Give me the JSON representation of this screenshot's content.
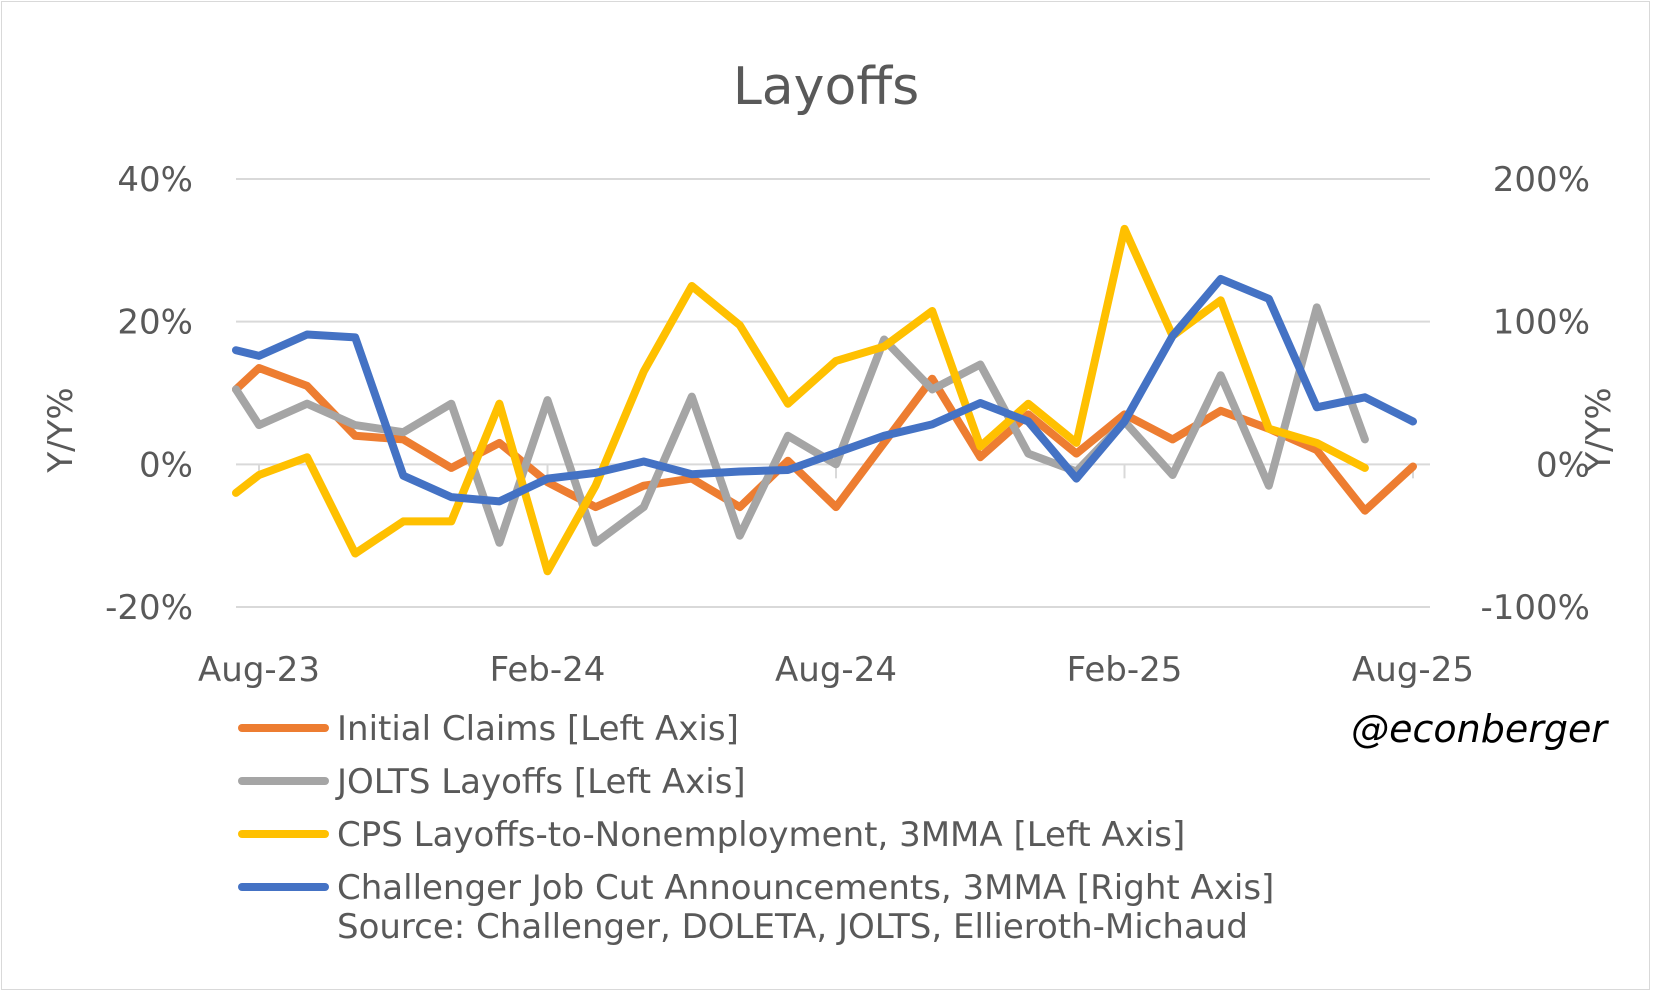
{
  "chart_data": {
    "type": "line",
    "title": "Layoffs",
    "ylabel_left": "Y/Y%",
    "ylabel_right": "Y/Y%",
    "x": [
      "Aug-23",
      "Sep-23",
      "Oct-23",
      "Nov-23",
      "Dec-23",
      "Jan-24",
      "Feb-24",
      "Mar-24",
      "Apr-24",
      "May-24",
      "Jun-24",
      "Jul-24",
      "Aug-24",
      "Sep-24",
      "Oct-24",
      "Nov-24",
      "Dec-24",
      "Jan-25",
      "Feb-25",
      "Mar-25",
      "Apr-25",
      "May-25",
      "Jun-25",
      "Jul-25",
      "Aug-25"
    ],
    "x_tick_labels": [
      "Aug-23",
      "Feb-24",
      "Aug-24",
      "Feb-25",
      "Aug-25"
    ],
    "x_tick_indices": [
      0,
      6,
      12,
      18,
      24
    ],
    "ylim_left": [
      -20,
      40
    ],
    "ylim_right": [
      -100,
      200
    ],
    "y_ticks_left": [
      "-20%",
      "0%",
      "20%",
      "40%"
    ],
    "y_ticks_left_values": [
      -20,
      0,
      20,
      40
    ],
    "y_ticks_right": [
      "-100%",
      "0%",
      "100%",
      "200%"
    ],
    "y_ticks_right_values": [
      -100,
      0,
      100,
      200
    ],
    "gridlines": true,
    "legend_position": "bottom-left",
    "series": [
      {
        "name": "Initial Claims [Left Axis]",
        "axis": "left",
        "color": "#ED7D31",
        "values": [
          13.5,
          11,
          4,
          3.5,
          -0.5,
          3,
          -2.5,
          -6,
          -3,
          -2,
          -6,
          0.5,
          -6,
          3,
          12,
          1,
          7,
          1.5,
          7,
          3.5,
          7.5,
          5,
          2,
          -6.5,
          -0.3
        ]
      },
      {
        "name": "JOLTS Layoffs [Left Axis]",
        "axis": "left",
        "color": "#A5A5A5",
        "values": [
          5.5,
          8.5,
          5.5,
          4.5,
          8.5,
          -11,
          9,
          -11,
          -6,
          9.5,
          -10,
          4,
          0,
          17.5,
          10.5,
          14,
          1.5,
          -1,
          6,
          -1.5,
          12.5,
          -3,
          22,
          3.5,
          null
        ]
      },
      {
        "name": "CPS Layoffs-to-Nonemployment, 3MMA [Left Axis]",
        "axis": "left",
        "color": "#FFC000",
        "values": [
          -1.5,
          1,
          -12.5,
          -8,
          -8,
          8.5,
          -15,
          -3,
          13,
          25,
          19.5,
          8.5,
          14.5,
          16.5,
          21.5,
          2.5,
          8.5,
          3,
          33,
          18,
          23,
          5,
          3,
          -0.5,
          null
        ]
      },
      {
        "name": "Challenger Job Cut Announcements, 3MMA [Right Axis]",
        "axis": "right",
        "color": "#4472C4",
        "values": [
          76,
          91,
          89,
          -8,
          -23,
          -26,
          -10,
          -6,
          2,
          -7,
          -5,
          -4,
          8,
          20,
          28,
          43,
          30,
          -10,
          30,
          90,
          130,
          116,
          40,
          47,
          30
        ]
      }
    ],
    "lead_in_values": {
      "Initial Claims [Left Axis]": 10.5,
      "JOLTS Layoffs [Left Axis]": 10.5,
      "CPS Layoffs-to-Nonemployment, 3MMA [Left Axis]": -4,
      "Challenger Job Cut Announcements, 3MMA [Right Axis]": 80
    }
  },
  "legend": {
    "items": [
      {
        "label": "Initial Claims [Left Axis]",
        "color": "#ED7D31"
      },
      {
        "label": "JOLTS Layoffs [Left Axis]",
        "color": "#A5A5A5"
      },
      {
        "label": "CPS Layoffs-to-Nonemployment, 3MMA [Left Axis]",
        "color": "#FFC000"
      },
      {
        "label": "Challenger Job Cut Announcements, 3MMA [Right Axis]",
        "color": "#4472C4"
      }
    ],
    "source": "Source: Challenger, DOLETA, JOLTS, Ellieroth-Michaud"
  },
  "watermark": "@econberger"
}
